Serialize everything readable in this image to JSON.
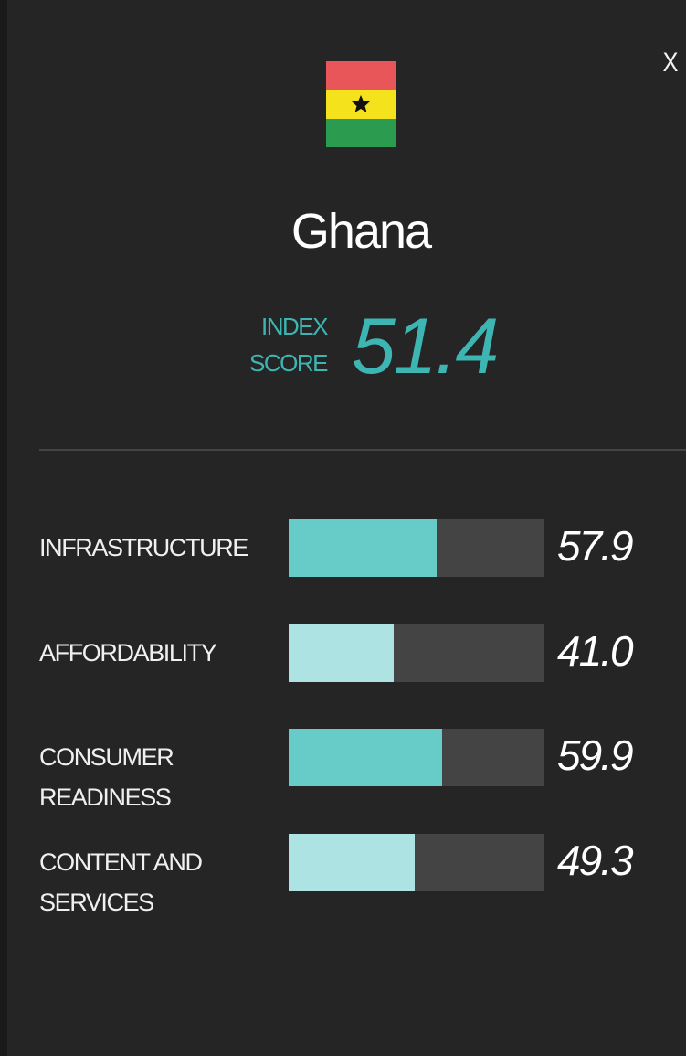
{
  "panel": {
    "close": "X",
    "country": "Ghana",
    "index_label": "INDEX SCORE",
    "index_score": 51.4
  },
  "chart_data": {
    "type": "bar",
    "orientation": "horizontal",
    "categories": [
      "INFRASTRUCTURE",
      "AFFORDABILITY",
      "CONSUMER READINESS",
      "CONTENT AND SERVICES"
    ],
    "values": [
      57.9,
      41.0,
      59.9,
      49.3
    ],
    "value_labels": [
      "57.9",
      "41.0",
      "59.9",
      "49.3"
    ],
    "colors": [
      "#67cbc8",
      "#ade3e2",
      "#67cbc8",
      "#ade3e2"
    ],
    "track_color": "#444444",
    "xlim": [
      0,
      100
    ]
  }
}
